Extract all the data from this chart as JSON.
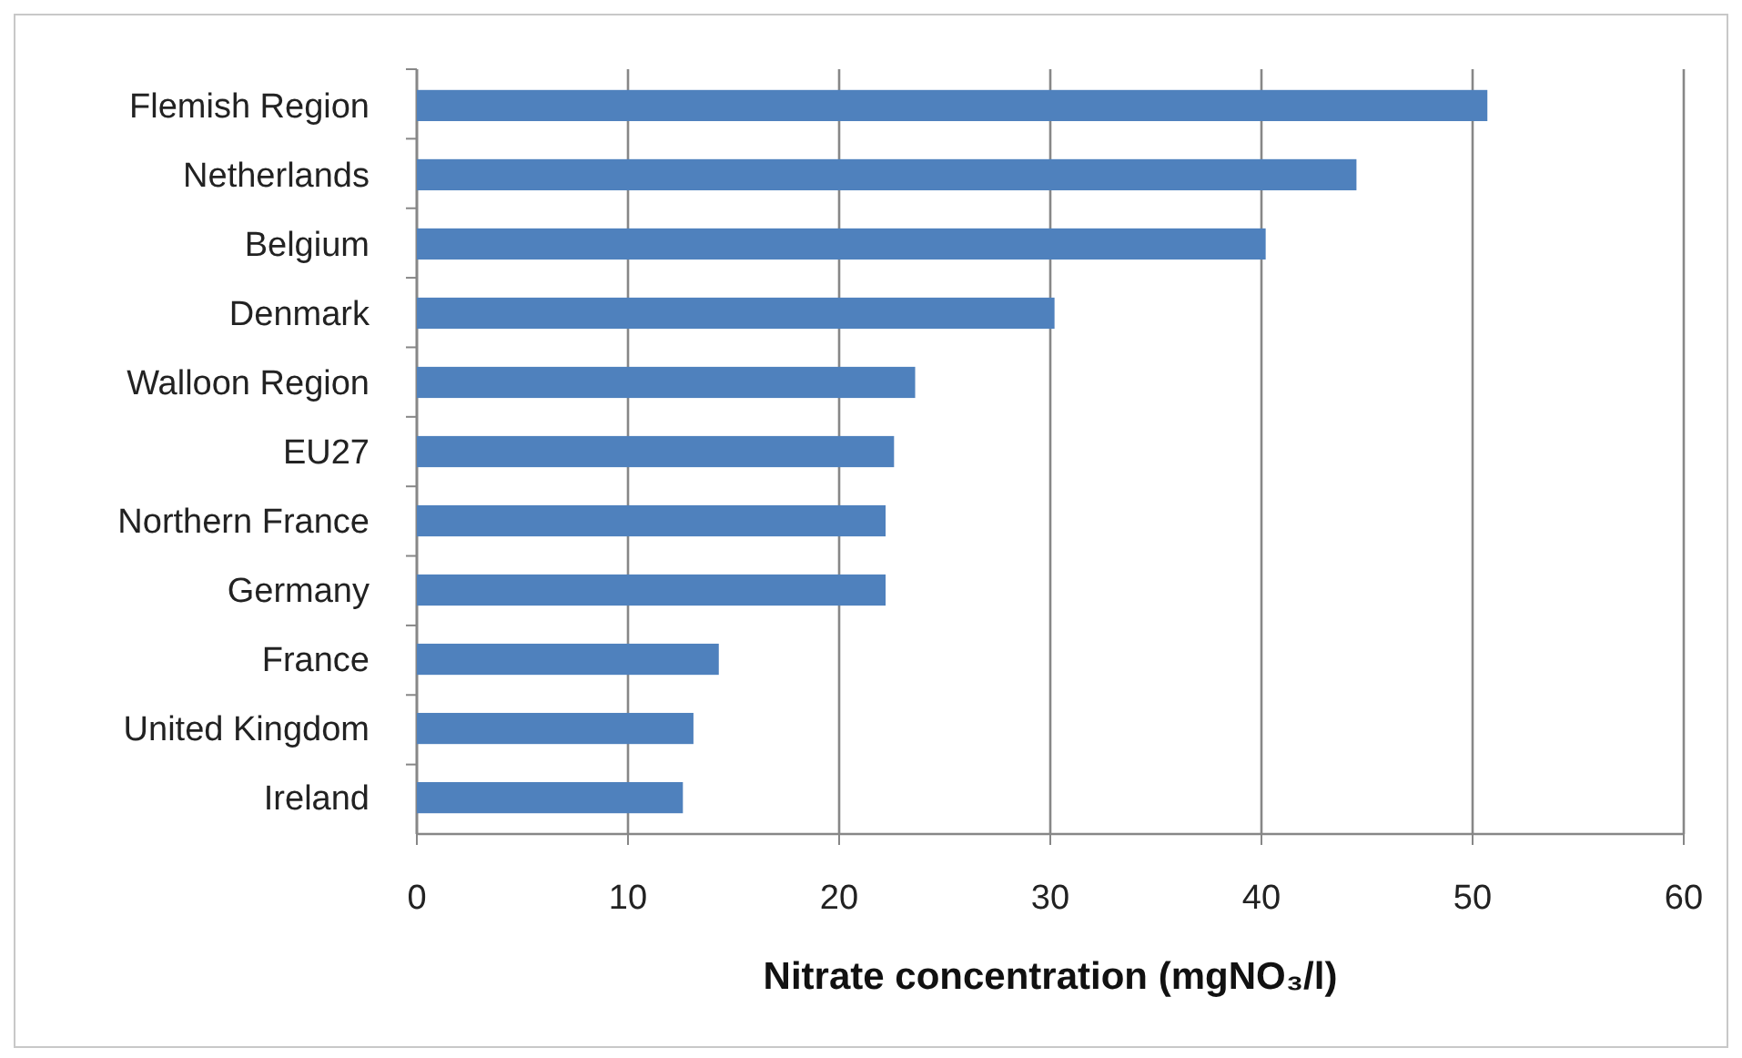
{
  "chart_data": {
    "type": "bar",
    "orientation": "horizontal",
    "xlabel": "Nitrate concentration (mgNO₃/l)",
    "categories": [
      "Flemish Region",
      "Netherlands",
      "Belgium",
      "Denmark",
      "Walloon Region",
      "EU27",
      "Northern France",
      "Germany",
      "France",
      "United Kingdom",
      "Ireland"
    ],
    "values": [
      50.7,
      44.5,
      40.2,
      30.2,
      23.6,
      22.6,
      22.2,
      22.2,
      14.3,
      13.1,
      12.6
    ],
    "color": "#4f81bd",
    "xlim": [
      0,
      60
    ],
    "xticks": [
      0,
      10,
      20,
      30,
      40,
      50,
      60
    ],
    "grid": "x"
  }
}
